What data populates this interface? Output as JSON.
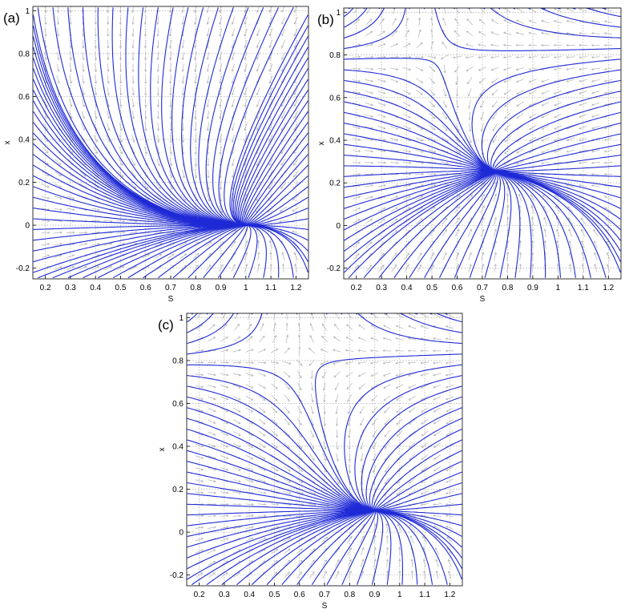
{
  "chart_data": [
    {
      "panel": "(a)",
      "type": "line",
      "subtype": "phase-portrait",
      "xlabel": "S",
      "ylabel": "x",
      "xlim": [
        0.15,
        1.25
      ],
      "ylim": [
        -0.25,
        1.02
      ],
      "xticks": [
        "0.2",
        "0.3",
        "0.4",
        "0.5",
        "0.6",
        "0.7",
        "0.8",
        "0.9",
        "1",
        "1.1",
        "1.2"
      ],
      "yticks": [
        "-0.2",
        "0",
        "0.2",
        "0.4",
        "0.6",
        "0.8",
        "1"
      ],
      "grid": true,
      "fixed_points": [
        [
          1.0,
          0.0
        ]
      ],
      "trajectory_color": "#1f2ad6",
      "arrow_color": "#b3b3b3"
    },
    {
      "panel": "(b)",
      "type": "line",
      "subtype": "phase-portrait",
      "xlabel": "S",
      "ylabel": "x",
      "xlim": [
        0.15,
        1.25
      ],
      "ylim": [
        -0.25,
        1.02
      ],
      "xticks": [
        "0.2",
        "0.3",
        "0.4",
        "0.5",
        "0.6",
        "0.7",
        "0.8",
        "0.9",
        "1",
        "1.1",
        "1.2"
      ],
      "yticks": [
        "-0.2",
        "0",
        "0.2",
        "0.4",
        "0.6",
        "0.8",
        "1"
      ],
      "grid": true,
      "fixed_points": [
        [
          0.75,
          0.25
        ],
        [
          1.0,
          0.0
        ]
      ],
      "trajectory_color": "#1f2ad6",
      "arrow_color": "#b3b3b3"
    },
    {
      "panel": "(c)",
      "type": "line",
      "subtype": "phase-portrait",
      "xlabel": "S",
      "ylabel": "x",
      "xlim": [
        0.15,
        1.25
      ],
      "ylim": [
        -0.25,
        1.02
      ],
      "xticks": [
        "0.2",
        "0.3",
        "0.4",
        "0.5",
        "0.6",
        "0.7",
        "0.8",
        "0.9",
        "1",
        "1.1",
        "1.2"
      ],
      "yticks": [
        "-0.2",
        "0",
        "0.2",
        "0.4",
        "0.6",
        "0.8",
        "1"
      ],
      "grid": true,
      "fixed_points": [
        [
          0.9,
          0.1
        ],
        [
          1.0,
          0.0
        ]
      ],
      "trajectory_color": "#1f2ad6",
      "arrow_color": "#b3b3b3"
    }
  ]
}
